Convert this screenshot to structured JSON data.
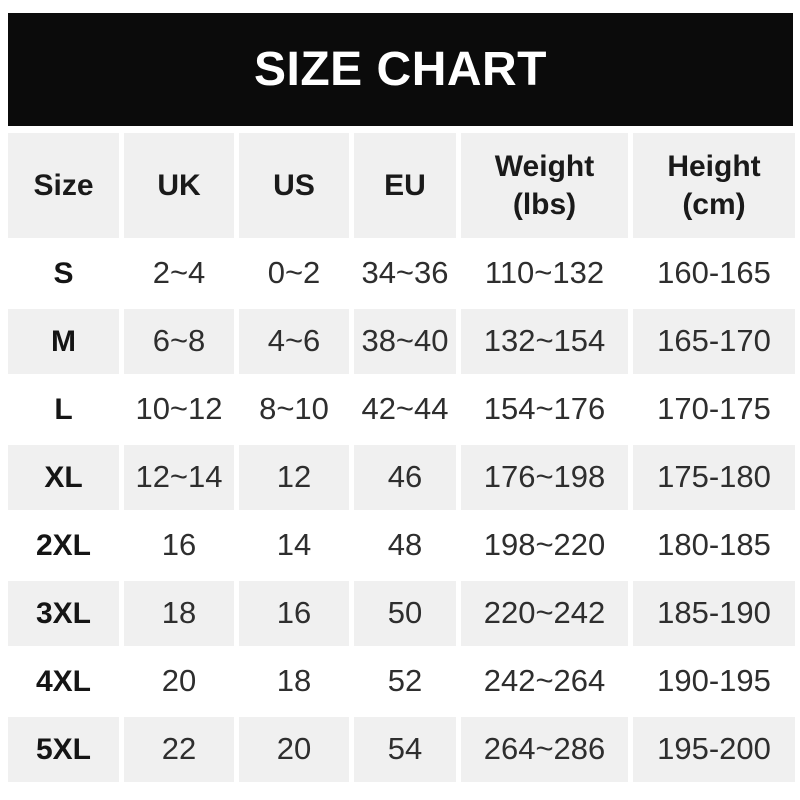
{
  "title": "SIZE CHART",
  "colors": {
    "banner_bg": "#0b0b0b",
    "banner_text": "#ffffff",
    "row_alt_bg": "#f0f0f0",
    "row_bg": "#ffffff",
    "header_text": "#1a1a1a",
    "body_text": "#2e2e2e"
  },
  "table": {
    "columns": [
      "Size",
      "UK",
      "US",
      "EU",
      "Weight\n(lbs)",
      "Height\n(cm)"
    ]
  },
  "chart_data": {
    "type": "table",
    "title": "SIZE CHART",
    "columns": [
      "Size",
      "UK",
      "US",
      "EU",
      "Weight (lbs)",
      "Height (cm)"
    ],
    "rows": [
      [
        "S",
        "2~4",
        "0~2",
        "34~36",
        "110~132",
        "160-165"
      ],
      [
        "M",
        "6~8",
        "4~6",
        "38~40",
        "132~154",
        "165-170"
      ],
      [
        "L",
        "10~12",
        "8~10",
        "42~44",
        "154~176",
        "170-175"
      ],
      [
        "XL",
        "12~14",
        "12",
        "46",
        "176~198",
        "175-180"
      ],
      [
        "2XL",
        "16",
        "14",
        "48",
        "198~220",
        "180-185"
      ],
      [
        "3XL",
        "18",
        "16",
        "50",
        "220~242",
        "185-190"
      ],
      [
        "4XL",
        "20",
        "18",
        "52",
        "242~264",
        "190-195"
      ],
      [
        "5XL",
        "22",
        "20",
        "54",
        "264~286",
        "195-200"
      ]
    ]
  }
}
